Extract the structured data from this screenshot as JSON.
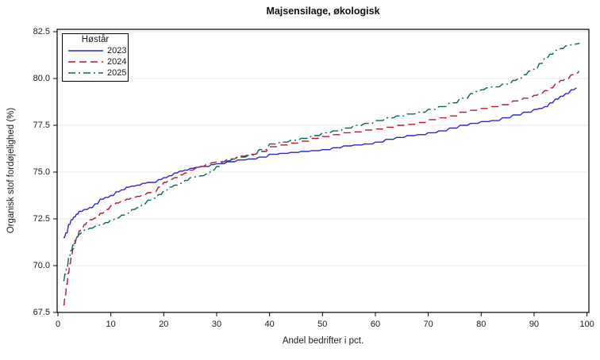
{
  "title": "Majsensilage, økologisk",
  "legend": {
    "title": "Høstår",
    "entries": [
      {
        "label": "2023",
        "color": "#2A25D9",
        "dash": "",
        "legend_dash": ""
      },
      {
        "label": "2024",
        "color": "#B2182B",
        "dash": "9,5",
        "legend_dash": "9,5"
      },
      {
        "label": "2025",
        "color": "#01665E",
        "dash": "11,4,2,4",
        "legend_dash": "9,4,2,4"
      }
    ]
  },
  "axes": {
    "x": {
      "label": "Andel bedrifter i pct.",
      "tick_labels": [
        "0",
        "10",
        "20",
        "30",
        "40",
        "50",
        "60",
        "70",
        "80",
        "90",
        "100"
      ],
      "tick_values": [
        0,
        10,
        20,
        30,
        40,
        50,
        60,
        70,
        80,
        90,
        100
      ],
      "range": [
        0,
        100
      ]
    },
    "y": {
      "label": "Organisk stof fordøjelighed (%)",
      "tick_labels": [
        "67.5",
        "70.0",
        "72.5",
        "75.0",
        "77.5",
        "80.0",
        "82.5"
      ],
      "tick_values": [
        67.5,
        70.0,
        72.5,
        75.0,
        77.5,
        80.0,
        82.5
      ],
      "range": [
        67.5,
        82.5
      ]
    }
  },
  "colors": {
    "grid": "#E8E8E8",
    "axis": "#000000",
    "text": "#1a1a1a",
    "background": "#FFFFFF"
  },
  "chart_data": {
    "type": "line",
    "title": "Majsensilage, økologisk",
    "xlabel": "Andel bedrifter i pct.",
    "ylabel": "Organisk stof fordøjelighed (%)",
    "xlim": [
      0,
      100
    ],
    "ylim": [
      67.5,
      82.5
    ],
    "grid": true,
    "legend_title": "Høstår",
    "legend_position": "top-left",
    "series": [
      {
        "name": "2023",
        "color": "#2A25D9",
        "style": "solid",
        "points": [
          [
            1,
            71.5
          ],
          [
            1.5,
            71.75
          ],
          [
            2,
            72.2
          ],
          [
            2.5,
            72.45
          ],
          [
            3,
            72.6
          ],
          [
            3.5,
            72.75
          ],
          [
            4,
            72.9
          ],
          [
            5,
            73.0
          ],
          [
            6,
            73.1
          ],
          [
            7,
            73.3
          ],
          [
            8,
            73.55
          ],
          [
            9,
            73.65
          ],
          [
            10,
            73.75
          ],
          [
            11,
            73.95
          ],
          [
            12,
            74.05
          ],
          [
            13,
            74.2
          ],
          [
            14,
            74.25
          ],
          [
            15,
            74.3
          ],
          [
            16,
            74.4
          ],
          [
            17,
            74.45
          ],
          [
            18,
            74.45
          ],
          [
            19,
            74.6
          ],
          [
            20,
            74.7
          ],
          [
            21,
            74.8
          ],
          [
            22,
            74.95
          ],
          [
            23,
            75.05
          ],
          [
            24,
            75.1
          ],
          [
            25,
            75.2
          ],
          [
            26,
            75.25
          ],
          [
            27,
            75.3
          ],
          [
            28,
            75.3
          ],
          [
            29,
            75.4
          ],
          [
            30,
            75.45
          ],
          [
            32,
            75.55
          ],
          [
            34,
            75.65
          ],
          [
            36,
            75.7
          ],
          [
            38,
            75.8
          ],
          [
            40,
            75.95
          ],
          [
            42,
            76.0
          ],
          [
            44,
            76.05
          ],
          [
            46,
            76.1
          ],
          [
            48,
            76.15
          ],
          [
            50,
            76.2
          ],
          [
            52,
            76.3
          ],
          [
            54,
            76.4
          ],
          [
            56,
            76.45
          ],
          [
            58,
            76.5
          ],
          [
            60,
            76.6
          ],
          [
            62,
            76.75
          ],
          [
            64,
            76.85
          ],
          [
            66,
            76.95
          ],
          [
            68,
            77.0
          ],
          [
            70,
            77.1
          ],
          [
            72,
            77.2
          ],
          [
            74,
            77.35
          ],
          [
            76,
            77.5
          ],
          [
            78,
            77.6
          ],
          [
            80,
            77.7
          ],
          [
            82,
            77.75
          ],
          [
            84,
            77.9
          ],
          [
            86,
            78.05
          ],
          [
            88,
            78.2
          ],
          [
            90,
            78.35
          ],
          [
            91,
            78.4
          ],
          [
            92,
            78.5
          ],
          [
            93,
            78.7
          ],
          [
            94,
            78.9
          ],
          [
            95,
            79.05
          ],
          [
            96,
            79.2
          ],
          [
            97,
            79.4
          ],
          [
            98,
            79.5
          ]
        ]
      },
      {
        "name": "2024",
        "color": "#B2182B",
        "style": "dashed",
        "points": [
          [
            1,
            67.9
          ],
          [
            1.3,
            68.4
          ],
          [
            1.6,
            69.0
          ],
          [
            1.9,
            69.6
          ],
          [
            2.2,
            70.1
          ],
          [
            2.5,
            70.55
          ],
          [
            2.8,
            70.9
          ],
          [
            3.1,
            71.2
          ],
          [
            3.5,
            71.5
          ],
          [
            4,
            71.85
          ],
          [
            4.5,
            72.05
          ],
          [
            5,
            72.2
          ],
          [
            5.5,
            72.35
          ],
          [
            6,
            72.45
          ],
          [
            7,
            72.55
          ],
          [
            8,
            72.8
          ],
          [
            9,
            73.0
          ],
          [
            10,
            73.2
          ],
          [
            11,
            73.35
          ],
          [
            12,
            73.45
          ],
          [
            13,
            73.55
          ],
          [
            14,
            73.65
          ],
          [
            15,
            73.7
          ],
          [
            16,
            73.8
          ],
          [
            17,
            73.9
          ],
          [
            18,
            73.95
          ],
          [
            19,
            74.2
          ],
          [
            20,
            74.45
          ],
          [
            21,
            74.6
          ],
          [
            22,
            74.7
          ],
          [
            23,
            74.85
          ],
          [
            24,
            74.95
          ],
          [
            25,
            75.1
          ],
          [
            26,
            75.2
          ],
          [
            27,
            75.3
          ],
          [
            28,
            75.4
          ],
          [
            29,
            75.5
          ],
          [
            30,
            75.55
          ],
          [
            32,
            75.7
          ],
          [
            34,
            75.85
          ],
          [
            36,
            75.95
          ],
          [
            38,
            76.1
          ],
          [
            40,
            76.35
          ],
          [
            42,
            76.45
          ],
          [
            44,
            76.55
          ],
          [
            46,
            76.65
          ],
          [
            48,
            76.8
          ],
          [
            50,
            76.9
          ],
          [
            52,
            77.0
          ],
          [
            54,
            77.1
          ],
          [
            56,
            77.15
          ],
          [
            58,
            77.25
          ],
          [
            60,
            77.3
          ],
          [
            62,
            77.4
          ],
          [
            64,
            77.5
          ],
          [
            66,
            77.55
          ],
          [
            68,
            77.65
          ],
          [
            70,
            77.8
          ],
          [
            72,
            77.9
          ],
          [
            74,
            78.0
          ],
          [
            76,
            78.2
          ],
          [
            78,
            78.3
          ],
          [
            80,
            78.4
          ],
          [
            82,
            78.5
          ],
          [
            84,
            78.6
          ],
          [
            86,
            78.8
          ],
          [
            88,
            78.95
          ],
          [
            90,
            79.1
          ],
          [
            91,
            79.2
          ],
          [
            92,
            79.35
          ],
          [
            93,
            79.5
          ],
          [
            94,
            79.7
          ],
          [
            95,
            79.9
          ],
          [
            96,
            80.0
          ],
          [
            97,
            80.2
          ],
          [
            98,
            80.3
          ],
          [
            98.5,
            80.4
          ]
        ]
      },
      {
        "name": "2025",
        "color": "#01665E",
        "style": "dash-dot",
        "points": [
          [
            1,
            69.2
          ],
          [
            1.3,
            69.55
          ],
          [
            1.6,
            69.9
          ],
          [
            2,
            70.4
          ],
          [
            2.4,
            70.8
          ],
          [
            2.8,
            71.1
          ],
          [
            3.2,
            71.35
          ],
          [
            3.6,
            71.55
          ],
          [
            4,
            71.7
          ],
          [
            4.5,
            71.8
          ],
          [
            5,
            71.9
          ],
          [
            6,
            72.0
          ],
          [
            7,
            72.1
          ],
          [
            8,
            72.2
          ],
          [
            9,
            72.3
          ],
          [
            10,
            72.45
          ],
          [
            11,
            72.55
          ],
          [
            12,
            72.7
          ],
          [
            13,
            72.8
          ],
          [
            14,
            73.0
          ],
          [
            15,
            73.1
          ],
          [
            16,
            73.3
          ],
          [
            17,
            73.5
          ],
          [
            18,
            73.6
          ],
          [
            19,
            73.8
          ],
          [
            20,
            74.0
          ],
          [
            21,
            74.2
          ],
          [
            22,
            74.3
          ],
          [
            23,
            74.4
          ],
          [
            24,
            74.55
          ],
          [
            25,
            74.7
          ],
          [
            26,
            74.75
          ],
          [
            27,
            74.8
          ],
          [
            28,
            74.9
          ],
          [
            29,
            75.1
          ],
          [
            30,
            75.3
          ],
          [
            31,
            75.5
          ],
          [
            32,
            75.6
          ],
          [
            33,
            75.7
          ],
          [
            34,
            75.8
          ],
          [
            36,
            75.9
          ],
          [
            38,
            76.2
          ],
          [
            40,
            76.5
          ],
          [
            42,
            76.6
          ],
          [
            44,
            76.7
          ],
          [
            46,
            76.8
          ],
          [
            48,
            76.95
          ],
          [
            50,
            77.1
          ],
          [
            52,
            77.2
          ],
          [
            54,
            77.35
          ],
          [
            56,
            77.5
          ],
          [
            58,
            77.6
          ],
          [
            60,
            77.75
          ],
          [
            62,
            77.9
          ],
          [
            64,
            78.0
          ],
          [
            66,
            78.1
          ],
          [
            68,
            78.2
          ],
          [
            70,
            78.35
          ],
          [
            72,
            78.5
          ],
          [
            74,
            78.7
          ],
          [
            76,
            78.95
          ],
          [
            78,
            79.2
          ],
          [
            79,
            79.3
          ],
          [
            80,
            79.4
          ],
          [
            81,
            79.5
          ],
          [
            82,
            79.55
          ],
          [
            84,
            79.7
          ],
          [
            86,
            79.9
          ],
          [
            87,
            80.0
          ],
          [
            88,
            80.2
          ],
          [
            89,
            80.4
          ],
          [
            90,
            80.5
          ],
          [
            91,
            80.8
          ],
          [
            92,
            81.1
          ],
          [
            93,
            81.3
          ],
          [
            94,
            81.5
          ],
          [
            95,
            81.6
          ],
          [
            96,
            81.75
          ],
          [
            97,
            81.8
          ],
          [
            98,
            81.85
          ],
          [
            98.6,
            81.9
          ]
        ]
      }
    ]
  }
}
